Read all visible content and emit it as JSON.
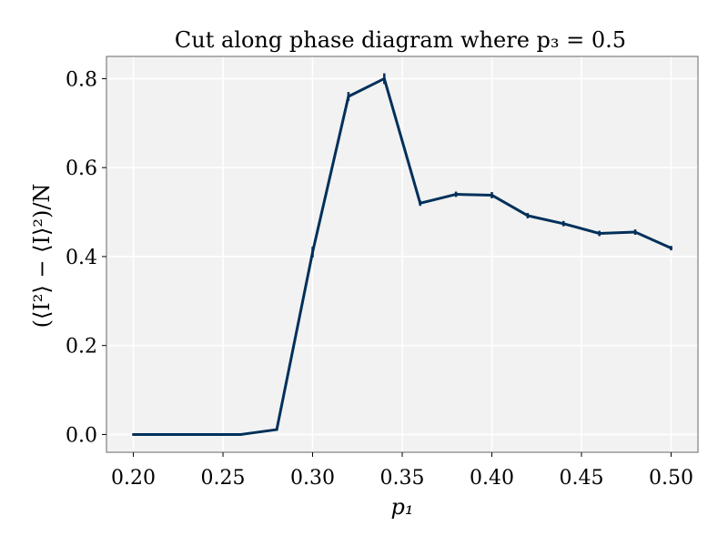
{
  "chart_data": {
    "type": "line",
    "title": "Cut along phase diagram where p₃ = 0.5",
    "xlabel": "p₁",
    "ylabel": "(⟨I²⟩ − ⟨I⟩²)/N",
    "xlim": [
      0.185,
      0.515
    ],
    "ylim": [
      -0.04,
      0.85
    ],
    "grid": true,
    "colors": {
      "plot_background": "#f2f2f2",
      "grid": "#ffffff",
      "frame": "#808080",
      "series": "#00305a"
    },
    "xticks": [
      0.2,
      0.25,
      0.3,
      0.35,
      0.4,
      0.45,
      0.5
    ],
    "xtick_labels": [
      "0.20",
      "0.25",
      "0.30",
      "0.35",
      "0.40",
      "0.45",
      "0.50"
    ],
    "yticks": [
      0.0,
      0.2,
      0.4,
      0.6,
      0.8
    ],
    "ytick_labels": [
      "0.0",
      "0.2",
      "0.4",
      "0.6",
      "0.8"
    ],
    "x": [
      0.2,
      0.22,
      0.24,
      0.26,
      0.28,
      0.3,
      0.32,
      0.34,
      0.36,
      0.38,
      0.4,
      0.42,
      0.44,
      0.46,
      0.48,
      0.5
    ],
    "series": [
      {
        "values": [
          0.0,
          0.0,
          0.0,
          0.0,
          0.011,
          0.41,
          0.76,
          0.8,
          0.52,
          0.54,
          0.538,
          0.492,
          0.474,
          0.452,
          0.455,
          0.419
        ],
        "errors": [
          0.0,
          0.0,
          0.0,
          0.0,
          0.001,
          0.012,
          0.01,
          0.012,
          0.006,
          0.006,
          0.007,
          0.006,
          0.006,
          0.006,
          0.006,
          0.005
        ]
      }
    ]
  }
}
